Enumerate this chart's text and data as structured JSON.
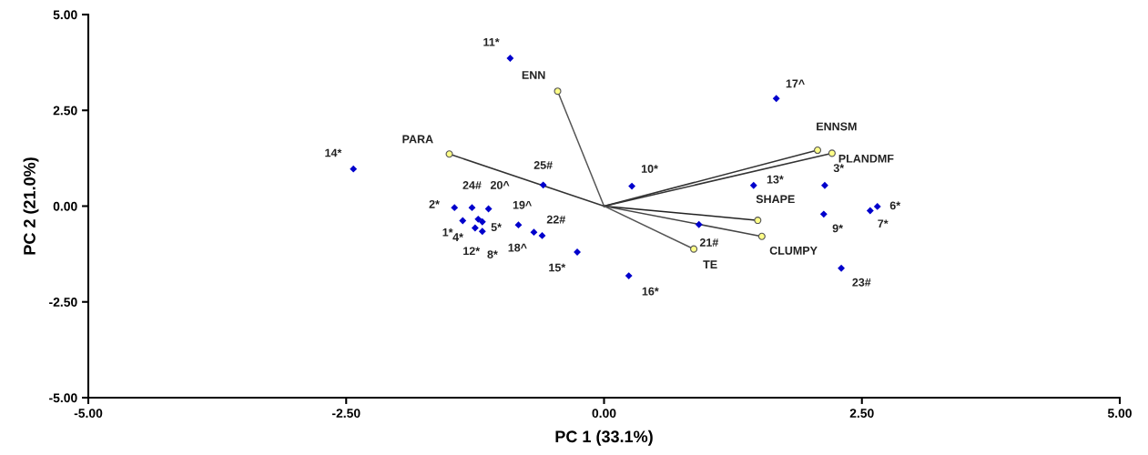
{
  "chart_data": {
    "type": "scatter",
    "xlabel": "PC 1 (33.1%)",
    "ylabel": "PC 2 (21.0%)",
    "xlim": [
      -5,
      5
    ],
    "ylim": [
      -5,
      5
    ],
    "xticks": [
      {
        "value": -5,
        "label": "-5.00"
      },
      {
        "value": -2.5,
        "label": "-2.50"
      },
      {
        "value": 0,
        "label": "0.00"
      },
      {
        "value": 2.5,
        "label": "2.50"
      },
      {
        "value": 5,
        "label": "5.00"
      }
    ],
    "yticks": [
      {
        "value": -5,
        "label": "-5.00"
      },
      {
        "value": -2.5,
        "label": "-2.50"
      },
      {
        "value": 0,
        "label": "0.00"
      },
      {
        "value": 2.5,
        "label": "2.50"
      },
      {
        "value": 5,
        "label": "5.00"
      }
    ],
    "grid": false,
    "legend": false,
    "series": [
      {
        "color": "#0000cc",
        "marker": "diamond",
        "x": [
          -2.43,
          -0.91,
          1.67,
          -0.59,
          0.27,
          1.45,
          2.14,
          -1.28,
          -1.12,
          -1.45,
          -0.83,
          -0.6,
          -1.37,
          -1.22,
          -1.18,
          -1.25,
          -1.18,
          -0.68,
          -0.26,
          0.24,
          0.92,
          2.13,
          2.58,
          2.65,
          2.3
        ],
        "values": [
          0.97,
          3.86,
          2.81,
          0.55,
          0.52,
          0.54,
          0.54,
          -0.04,
          -0.07,
          -0.04,
          -0.49,
          -0.77,
          -0.38,
          -0.34,
          -0.41,
          -0.57,
          -0.66,
          -0.68,
          -1.2,
          -1.82,
          -0.48,
          -0.21,
          -0.12,
          -0.01,
          -1.62
        ]
      },
      {
        "type": "line",
        "name": "ENN",
        "color": "#555555",
        "marker": "circle",
        "x": [
          0,
          -0.45
        ],
        "values": [
          0,
          3.0
        ]
      },
      {
        "type": "line",
        "name": "ENNSM",
        "color": "#333333",
        "marker": "circle",
        "x": [
          0,
          2.07
        ],
        "values": [
          0,
          1.46
        ]
      },
      {
        "type": "line",
        "name": "PLANDMF",
        "color": "#333333",
        "marker": "circle",
        "x": [
          0,
          2.21
        ],
        "values": [
          0,
          1.38
        ]
      },
      {
        "type": "line",
        "name": "PARA",
        "color": "#333333",
        "marker": "circle",
        "x": [
          0,
          -1.5
        ],
        "values": [
          0,
          1.36
        ]
      },
      {
        "type": "line",
        "name": "SHAPE",
        "color": "#222222",
        "marker": "circle",
        "x": [
          0,
          1.49
        ],
        "values": [
          0,
          -0.37
        ]
      },
      {
        "type": "line",
        "name": "CLUMPY",
        "color": "#444444",
        "marker": "circle",
        "x": [
          0,
          1.53
        ],
        "values": [
          0,
          -0.79
        ]
      },
      {
        "type": "line",
        "name": "TE",
        "color": "#555555",
        "marker": "circle",
        "x": [
          0,
          0.87
        ],
        "values": [
          0,
          -1.12
        ]
      }
    ],
    "annotations": [
      {
        "text": "14*",
        "x": -2.43,
        "y": 0.97
      },
      {
        "text": "11*",
        "x": -0.91,
        "y": 3.86
      },
      {
        "text": "17^",
        "x": 1.67,
        "y": 2.81
      },
      {
        "text": "25#",
        "x": -0.59,
        "y": 0.55
      },
      {
        "text": "10*",
        "x": 0.27,
        "y": 0.52
      },
      {
        "text": "13*",
        "x": 1.45,
        "y": 0.54
      },
      {
        "text": "3*",
        "x": 2.14,
        "y": 0.54
      },
      {
        "text": "24#",
        "x": -1.28,
        "y": -0.04
      },
      {
        "text": "20^",
        "x": -1.12,
        "y": -0.07
      },
      {
        "text": "2*",
        "x": -1.45,
        "y": -0.04
      },
      {
        "text": "19^",
        "x": -0.83,
        "y": -0.49
      },
      {
        "text": "22#",
        "x": -0.6,
        "y": -0.77
      },
      {
        "text": "1*",
        "x": -1.37,
        "y": -0.38
      },
      {
        "text": "4*",
        "x": -1.22,
        "y": -0.34
      },
      {
        "text": "5*",
        "x": -1.18,
        "y": -0.41
      },
      {
        "text": "12*",
        "x": -1.25,
        "y": -0.57
      },
      {
        "text": "8*",
        "x": -1.18,
        "y": -0.66
      },
      {
        "text": "18^",
        "x": -0.68,
        "y": -0.68
      },
      {
        "text": "15*",
        "x": -0.26,
        "y": -1.2
      },
      {
        "text": "16*",
        "x": 0.24,
        "y": -1.82
      },
      {
        "text": "21#",
        "x": 0.92,
        "y": -0.48
      },
      {
        "text": "9*",
        "x": 2.13,
        "y": -0.21
      },
      {
        "text": "7*",
        "x": 2.58,
        "y": -0.12
      },
      {
        "text": "6*",
        "x": 2.65,
        "y": -0.01
      },
      {
        "text": "23#",
        "x": 2.3,
        "y": -1.62
      }
    ]
  }
}
